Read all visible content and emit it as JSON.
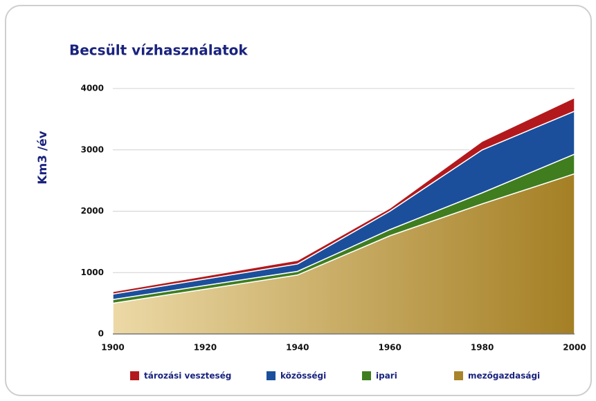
{
  "chart_data": {
    "type": "stacked_area",
    "title": "Becsült vízhasználatok",
    "y_label": "Km3 /év",
    "x": [
      1900,
      1940,
      1960,
      1980,
      2000
    ],
    "xlim": [
      1900,
      2000
    ],
    "xticks": [
      1900,
      1920,
      1940,
      1960,
      1980,
      2000
    ],
    "ylim": [
      0,
      4000
    ],
    "yticks": [
      0,
      1000,
      2000,
      3000,
      4000
    ],
    "grid": true,
    "series": [
      {
        "name": "tározási veszteség",
        "color": "#b3191c",
        "values": [
          40,
          60,
          50,
          140,
          220
        ]
      },
      {
        "name": "közösségi",
        "color": "#1b4f9c",
        "values": [
          90,
          120,
          300,
          700,
          700
        ]
      },
      {
        "name": "ipari",
        "color": "#3f7d1f",
        "values": [
          60,
          60,
          100,
          180,
          320
        ]
      },
      {
        "name": "mezőgazdasági",
        "color": "#a8842a",
        "values": [
          500,
          960,
          1600,
          2120,
          2610
        ]
      }
    ]
  }
}
